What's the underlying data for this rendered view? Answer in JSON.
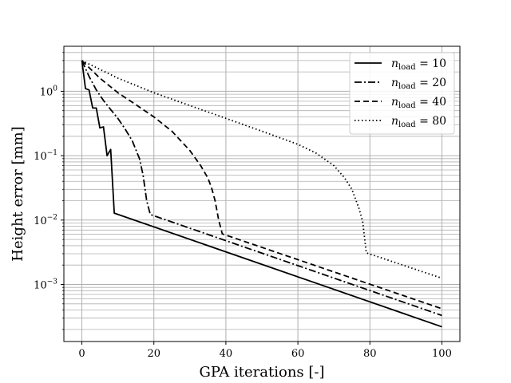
{
  "chart_data": {
    "type": "line",
    "xlabel": "GPA iterations [-]",
    "ylabel": "Height error  [mm]",
    "xlim": [
      -5,
      105
    ],
    "ylim": [
      0.00013,
      5
    ],
    "yscale": "log",
    "grid": "on (major and minor)",
    "legend_position": "top-right",
    "x_ticks": [
      0,
      20,
      40,
      60,
      80,
      100
    ],
    "y_ticks": [
      {
        "value": 0.001,
        "base": "10",
        "exp": "−3"
      },
      {
        "value": 0.01,
        "base": "10",
        "exp": "−2"
      },
      {
        "value": 0.1,
        "base": "10",
        "exp": "−1"
      },
      {
        "value": 1,
        "base": "10",
        "exp": "0"
      }
    ],
    "series": [
      {
        "name_main": "n",
        "name_sub": "load",
        "name_rest": " = 10",
        "style": "solid",
        "x": [
          0,
          1,
          2,
          3,
          4,
          5,
          6,
          7,
          8,
          9,
          100
        ],
        "y": [
          3.0,
          1.1,
          1.05,
          0.55,
          0.55,
          0.27,
          0.28,
          0.1,
          0.125,
          0.0128,
          0.00022
        ]
      },
      {
        "name_main": "n",
        "name_sub": "load",
        "name_rest": " = 20",
        "style": "dashdot",
        "x": [
          0,
          2,
          4,
          6,
          8,
          10,
          12,
          14,
          16,
          17,
          18,
          19,
          100
        ],
        "y": [
          3.0,
          1.7,
          1.05,
          0.72,
          0.52,
          0.38,
          0.26,
          0.17,
          0.09,
          0.05,
          0.02,
          0.0122,
          0.00033
        ]
      },
      {
        "name_main": "n",
        "name_sub": "load",
        "name_rest": " = 40",
        "style": "dashed",
        "x": [
          0,
          5,
          10,
          15,
          20,
          25,
          30,
          33,
          35,
          36,
          37,
          38,
          39,
          100
        ],
        "y": [
          3.0,
          1.6,
          0.95,
          0.62,
          0.4,
          0.24,
          0.12,
          0.07,
          0.045,
          0.032,
          0.02,
          0.01,
          0.0061,
          0.00042
        ]
      },
      {
        "name_main": "n",
        "name_sub": "load",
        "name_rest": " = 80",
        "style": "dotted",
        "x": [
          0,
          10,
          20,
          30,
          40,
          50,
          60,
          65,
          70,
          73,
          75,
          77,
          78,
          79,
          100
        ],
        "y": [
          3.0,
          1.6,
          0.95,
          0.6,
          0.38,
          0.24,
          0.15,
          0.11,
          0.07,
          0.045,
          0.03,
          0.015,
          0.0095,
          0.0031,
          0.00125
        ]
      }
    ]
  }
}
